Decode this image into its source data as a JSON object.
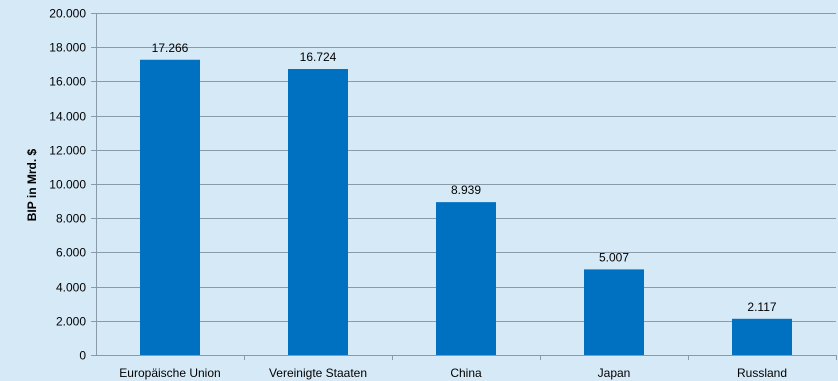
{
  "chart_data": {
    "type": "bar",
    "title": "",
    "xlabel": "",
    "ylabel": "BIP in Mrd. $",
    "ylim": [
      0,
      20000
    ],
    "yticks": [
      0,
      2000,
      4000,
      6000,
      8000,
      10000,
      12000,
      14000,
      16000,
      18000,
      20000
    ],
    "ytick_labels": [
      "0",
      "2.000",
      "4.000",
      "6.000",
      "8.000",
      "10.000",
      "12.000",
      "14.000",
      "16.000",
      "18.000",
      "20.000"
    ],
    "categories": [
      "Europäische Union",
      "Vereinigte Staaten",
      "China",
      "Japan",
      "Russland"
    ],
    "values": [
      17266,
      16724,
      8939,
      5007,
      2117
    ],
    "data_labels": [
      "17.266",
      "16.724",
      "8.939",
      "5.007",
      "2.117"
    ],
    "grid": true,
    "legend": "none",
    "colors": {
      "bar": "#0070c0",
      "background": "#d6e9f7",
      "grid": "#8a9aa8",
      "axis": "#8a9aa8"
    }
  }
}
